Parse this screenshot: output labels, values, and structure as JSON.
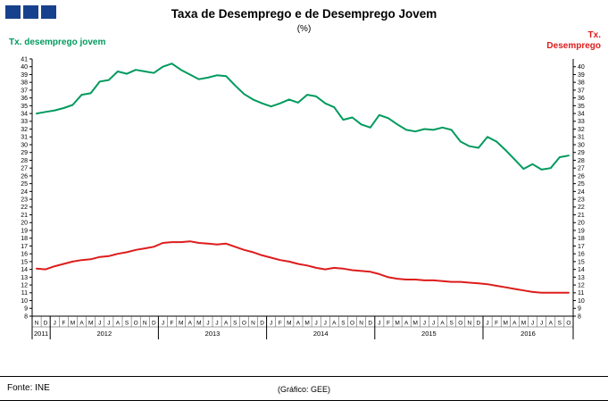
{
  "header": {
    "title": "Taxa de Desemprego e de Desemprego Jovem",
    "subtitle": "(%)"
  },
  "labels": {
    "left_series": "Tx. desemprego jovem",
    "right_series_line1": "Tx.",
    "right_series_line2": "Desemprego"
  },
  "footer": {
    "source": "Fonte: INE",
    "credit": "(Gráfico: GEE)"
  },
  "colors": {
    "logo_navy": "#17418c",
    "youth_green": "#009a5e",
    "unemployment_red": "#dd1c1c",
    "axis_black": "#000000"
  },
  "chart_data": {
    "type": "line",
    "title": "Taxa de Desemprego e de Desemprego Jovem",
    "subtitle": "(%)",
    "ylim_left": [
      8,
      41
    ],
    "ylim_right": [
      8,
      40
    ],
    "grid": false,
    "legend_position": "top-corners",
    "yticks_left": [
      41,
      40,
      39,
      38,
      37,
      36,
      35,
      34,
      33,
      32,
      31,
      30,
      29,
      28,
      27,
      26,
      25,
      24,
      23,
      22,
      21,
      20,
      19,
      18,
      17,
      16,
      15,
      14,
      13,
      12,
      11,
      10,
      9,
      8
    ],
    "yticks_right": [
      40,
      39,
      38,
      37,
      36,
      35,
      34,
      33,
      32,
      31,
      30,
      29,
      28,
      27,
      26,
      25,
      24,
      23,
      22,
      21,
      20,
      19,
      18,
      17,
      16,
      15,
      14,
      13,
      12,
      11,
      10,
      9,
      8
    ],
    "years": [
      {
        "label": "2011",
        "months": [
          "N",
          "D"
        ]
      },
      {
        "label": "2012",
        "months": [
          "J",
          "F",
          "M",
          "A",
          "M",
          "J",
          "J",
          "A",
          "S",
          "O",
          "N",
          "D"
        ]
      },
      {
        "label": "2013",
        "months": [
          "J",
          "F",
          "M",
          "A",
          "M",
          "J",
          "J",
          "A",
          "S",
          "O",
          "N",
          "D"
        ]
      },
      {
        "label": "2014",
        "months": [
          "J",
          "F",
          "M",
          "A",
          "M",
          "J",
          "J",
          "A",
          "S",
          "O",
          "N",
          "D"
        ]
      },
      {
        "label": "2015",
        "months": [
          "J",
          "F",
          "M",
          "A",
          "M",
          "J",
          "J",
          "A",
          "S",
          "O",
          "N",
          "D"
        ]
      },
      {
        "label": "2016",
        "months": [
          "J",
          "F",
          "M",
          "A",
          "M",
          "J",
          "J",
          "A",
          "S",
          "O"
        ]
      }
    ],
    "series": [
      {
        "name": "Tx. desemprego jovem",
        "axis": "left",
        "color_key": "youth_green",
        "values": [
          34.0,
          34.2,
          34.4,
          34.7,
          35.1,
          36.4,
          36.6,
          38.1,
          38.3,
          39.4,
          39.1,
          39.6,
          39.4,
          39.2,
          40.0,
          40.4,
          39.6,
          39.0,
          38.4,
          38.6,
          38.9,
          38.8,
          37.6,
          36.5,
          35.8,
          35.3,
          34.9,
          35.3,
          35.8,
          35.4,
          36.4,
          36.2,
          35.3,
          34.8,
          33.2,
          33.5,
          32.6,
          32.2,
          33.8,
          33.4,
          32.6,
          31.9,
          31.7,
          32.0,
          31.9,
          32.2,
          31.9,
          30.4,
          29.8,
          29.6,
          31.0,
          30.4,
          29.3,
          28.1,
          26.9,
          27.5,
          26.8,
          27.0,
          28.4,
          28.6
        ]
      },
      {
        "name": "Tx. Desemprego",
        "axis": "right",
        "color_key": "unemployment_red",
        "values": [
          14.1,
          14.0,
          14.4,
          14.7,
          15.0,
          15.2,
          15.3,
          15.6,
          15.7,
          16.0,
          16.2,
          16.5,
          16.7,
          16.9,
          17.4,
          17.5,
          17.5,
          17.6,
          17.4,
          17.3,
          17.2,
          17.3,
          16.9,
          16.5,
          16.2,
          15.8,
          15.5,
          15.2,
          15.0,
          14.7,
          14.5,
          14.2,
          14.0,
          14.2,
          14.1,
          13.9,
          13.8,
          13.7,
          13.4,
          13.0,
          12.8,
          12.7,
          12.7,
          12.6,
          12.6,
          12.5,
          12.4,
          12.4,
          12.3,
          12.2,
          12.1,
          11.9,
          11.7,
          11.5,
          11.3,
          11.1,
          11.0,
          11.0,
          11.0,
          11.0
        ]
      }
    ]
  }
}
